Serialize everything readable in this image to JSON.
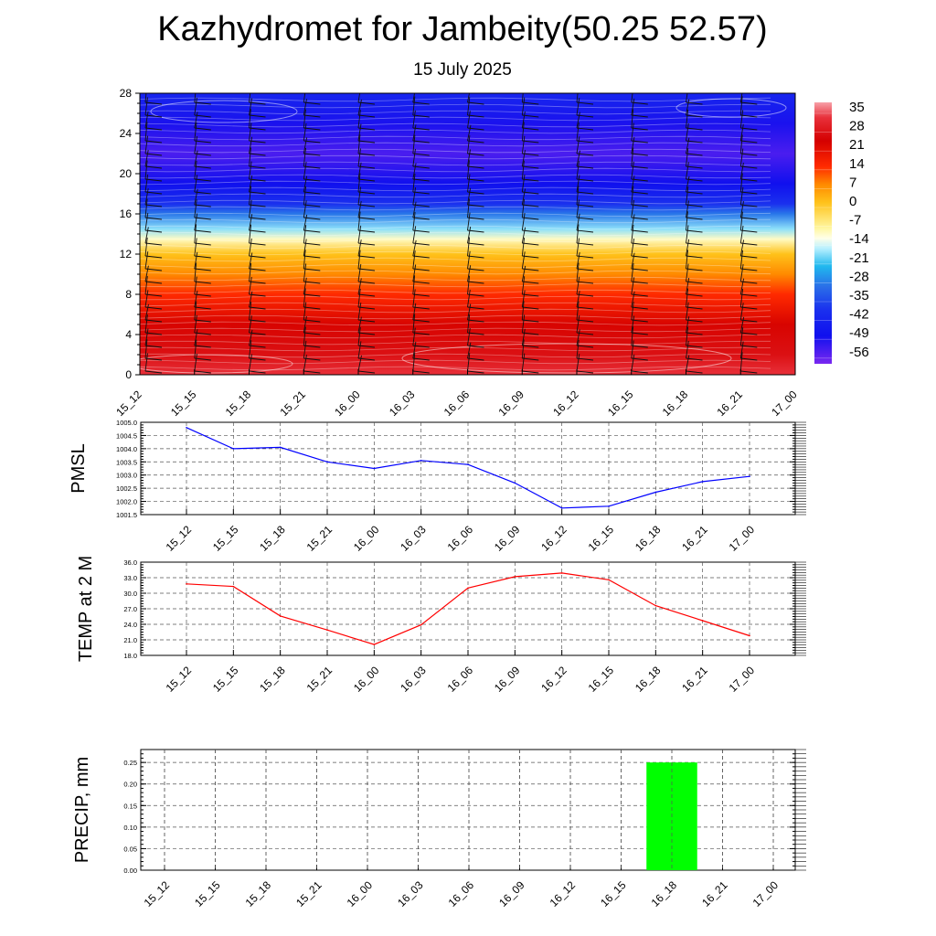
{
  "title": "Kazhydromet for Jambeity(50.25 52.57)",
  "subtitle": "15 July 2025",
  "time_labels": [
    "15_12",
    "15_15",
    "15_18",
    "15_21",
    "16_00",
    "16_03",
    "16_06",
    "16_09",
    "16_12",
    "16_15",
    "16_18",
    "16_21",
    "17_00"
  ],
  "colors": {
    "pressure_line": "#0000ff",
    "temperature_line": "#ff0000",
    "precip_bar": "#00ff00",
    "grid": "#555555"
  },
  "chart_data": [
    {
      "type": "heatmap",
      "title": "",
      "xlabel": "",
      "ylabel": "",
      "x": [
        "15_12",
        "15_15",
        "15_18",
        "15_21",
        "16_00",
        "16_03",
        "16_06",
        "16_09",
        "16_12",
        "16_15",
        "16_18",
        "16_21",
        "17_00"
      ],
      "y_ticks": [
        "0",
        "4",
        "8",
        "12",
        "16",
        "20",
        "24",
        "28"
      ],
      "ylim": [
        0,
        28
      ],
      "colorbar": {
        "labels": [
          "35",
          "28",
          "21",
          "14",
          "7",
          "0",
          "-7",
          "-14",
          "-21",
          "-28",
          "-35",
          "-42",
          "-49",
          "-56"
        ],
        "range": [
          -63,
          39
        ],
        "stops": [
          {
            "t": 39,
            "color": "#f7a0a8"
          },
          {
            "t": 33,
            "color": "#e8303a"
          },
          {
            "t": 24,
            "color": "#d40000"
          },
          {
            "t": 14,
            "color": "#ff2a00"
          },
          {
            "t": 7,
            "color": "#ff8a00"
          },
          {
            "t": 0,
            "color": "#ffc21a"
          },
          {
            "t": -10,
            "color": "#fff6a0"
          },
          {
            "t": -14,
            "color": "#ffffe8"
          },
          {
            "t": -18,
            "color": "#b8f0ff"
          },
          {
            "t": -25,
            "color": "#20b8ee"
          },
          {
            "t": -33,
            "color": "#2a6ee8"
          },
          {
            "t": -42,
            "color": "#1a30ee"
          },
          {
            "t": -52,
            "color": "#1010ee"
          },
          {
            "t": -63,
            "color": "#7a28f0"
          }
        ]
      },
      "temperature_profile": [
        {
          "h": 0,
          "t": 33
        },
        {
          "h": 2,
          "t": 27
        },
        {
          "h": 5,
          "t": 23
        },
        {
          "h": 8,
          "t": 14
        },
        {
          "h": 10,
          "t": 7
        },
        {
          "h": 12,
          "t": 0
        },
        {
          "h": 13.5,
          "t": -12
        },
        {
          "h": 14.5,
          "t": -20
        },
        {
          "h": 16,
          "t": -32
        },
        {
          "h": 17,
          "t": -42
        },
        {
          "h": 19,
          "t": -52
        },
        {
          "h": 22,
          "t": -58
        },
        {
          "h": 25,
          "t": -53
        },
        {
          "h": 28,
          "t": -45
        }
      ]
    },
    {
      "type": "line",
      "title": "",
      "ylabel": "PMSL",
      "xlabel": "",
      "categories": [
        "15_12",
        "15_15",
        "15_18",
        "15_21",
        "16_00",
        "16_03",
        "16_06",
        "16_09",
        "16_12",
        "16_15",
        "16_18",
        "16_21",
        "17_00"
      ],
      "series": [
        {
          "values": [
            1004.8,
            1004.0,
            1004.05,
            1003.5,
            1003.25,
            1003.55,
            1003.4,
            1002.7,
            1001.75,
            1001.82,
            1002.35,
            1002.75,
            1002.95
          ]
        }
      ],
      "ylim": [
        1001.5,
        1005.0
      ],
      "y_ticks": [
        "1001.5",
        "1002.0",
        "1002.5",
        "1003.0",
        "1003.5",
        "1004.0",
        "1004.5",
        "1005.0"
      ],
      "grid": true
    },
    {
      "type": "line",
      "title": "",
      "ylabel": "TEMP at 2 M",
      "xlabel": "",
      "categories": [
        "15_12",
        "15_15",
        "15_18",
        "15_21",
        "16_00",
        "16_03",
        "16_06",
        "16_09",
        "16_12",
        "16_15",
        "16_18",
        "16_21",
        "17_00"
      ],
      "series": [
        {
          "values": [
            31.8,
            31.3,
            25.6,
            22.9,
            20.1,
            23.9,
            31.0,
            33.2,
            33.9,
            32.6,
            27.6,
            24.7,
            21.8
          ]
        }
      ],
      "ylim": [
        18.0,
        36.0
      ],
      "y_ticks": [
        "18.0",
        "21.0",
        "24.0",
        "27.0",
        "30.0",
        "33.0",
        "36.0"
      ],
      "grid": true
    },
    {
      "type": "bar",
      "title": "",
      "ylabel": "PRECIP, mm",
      "xlabel": "",
      "categories": [
        "15_12",
        "15_15",
        "15_18",
        "15_21",
        "16_00",
        "16_03",
        "16_06",
        "16_09",
        "16_12",
        "16_15",
        "16_18",
        "16_21",
        "17_00"
      ],
      "values": [
        0,
        0,
        0,
        0,
        0,
        0,
        0,
        0,
        0,
        0,
        0.25,
        0,
        0
      ],
      "ylim": [
        0,
        0.28
      ],
      "y_ticks": [
        "0.00",
        "0.05",
        "0.10",
        "0.15",
        "0.20",
        "0.25"
      ],
      "grid": true
    }
  ]
}
